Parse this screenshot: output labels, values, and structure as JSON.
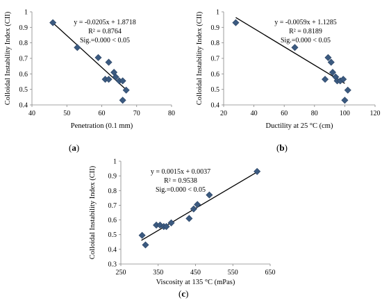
{
  "chart_data": [
    {
      "type": "scatter",
      "panel_label": "a",
      "xlabel": "Penetration (0.1 mm)",
      "ylabel": "Colloidal Instability Index (CII)",
      "xlim": [
        40,
        80
      ],
      "ylim": [
        0.4,
        1.0
      ],
      "xticks": [
        "40",
        "50",
        "60",
        "70",
        "80"
      ],
      "yticks": [
        "0.4",
        "0.5",
        "0.6",
        "0.7",
        "0.8",
        "0.9",
        "1"
      ],
      "annotations": [
        "y = -0.0205x + 1.8718",
        "R² = 0.8764",
        "Sig.=0.000 < 0.05"
      ],
      "trendline": {
        "slope": -0.0205,
        "intercept": 1.8718,
        "x_range": [
          46,
          67
        ]
      },
      "x": [
        46,
        53,
        59,
        61,
        62,
        62,
        63.5,
        64,
        65,
        66,
        66,
        67
      ],
      "y": [
        0.93,
        0.77,
        0.705,
        0.565,
        0.675,
        0.565,
        0.61,
        0.58,
        0.555,
        0.555,
        0.43,
        0.495
      ]
    },
    {
      "type": "scatter",
      "panel_label": "b",
      "xlabel": "Ductility at 25 °C (cm)",
      "ylabel": "Colloidal Instability Index (CII)",
      "xlim": [
        20,
        120
      ],
      "ylim": [
        0.4,
        1.0
      ],
      "xticks": [
        "20",
        "40",
        "60",
        "80",
        "100",
        "120"
      ],
      "yticks": [
        "0.4",
        "0.5",
        "0.6",
        "0.7",
        "0.8",
        "0.9",
        "1"
      ],
      "annotations": [
        "y = -0.0059x + 1.1285",
        "R² = 0.8189",
        "Sig.=0.000 < 0.05"
      ],
      "trendline": {
        "slope": -0.0059,
        "intercept": 1.1285,
        "x_range": [
          28,
          100
        ]
      },
      "x": [
        28,
        67,
        87,
        89,
        91,
        92,
        94,
        95,
        97,
        99,
        100,
        102
      ],
      "y": [
        0.93,
        0.77,
        0.565,
        0.705,
        0.675,
        0.61,
        0.58,
        0.555,
        0.555,
        0.565,
        0.43,
        0.495
      ]
    },
    {
      "type": "scatter",
      "panel_label": "c",
      "xlabel": "Viscosity at 135 °C  (mPas)",
      "ylabel": "Colloidal Instability Index (CII)",
      "xlim": [
        250,
        650
      ],
      "ylim": [
        0.3,
        1.0
      ],
      "xticks": [
        "250",
        "350",
        "450",
        "550",
        "650"
      ],
      "yticks": [
        "0.3",
        "0.4",
        "0.5",
        "0.6",
        "0.7",
        "0.8",
        "0.9",
        "1"
      ],
      "annotations": [
        "y = 0.0015x + 0.0037",
        "R² = 0.9538",
        "Sig.=0.000 < 0.05"
      ],
      "trendline": {
        "slope": 0.0015,
        "intercept": 0.0037,
        "x_range": [
          305,
          615
        ]
      },
      "x": [
        307,
        316,
        345,
        355,
        365,
        372,
        385,
        433,
        445,
        455,
        487,
        615
      ],
      "y": [
        0.495,
        0.43,
        0.565,
        0.565,
        0.555,
        0.555,
        0.58,
        0.61,
        0.675,
        0.705,
        0.77,
        0.93
      ]
    }
  ],
  "colors": {
    "marker": "#3b5a80",
    "marker_stroke": "#2a4263",
    "trendline": "#000000"
  }
}
